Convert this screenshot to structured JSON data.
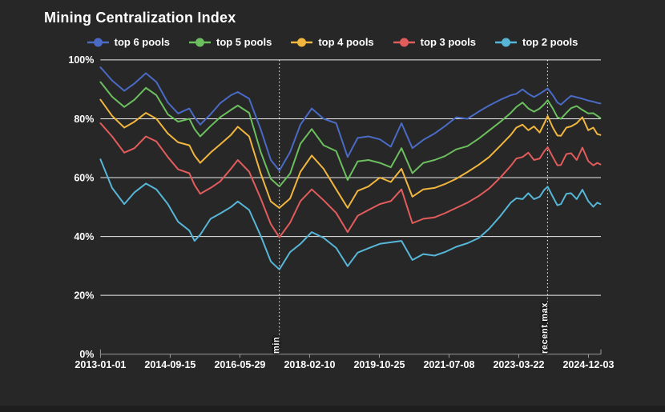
{
  "page": {
    "title": "Mining Centralization Index"
  },
  "theme": {
    "background": "#272727",
    "grid_color": "#ededed",
    "axis_color": "#9a9a9a",
    "text_color": "#ffffff",
    "annotation_line_color": "#ffffff"
  },
  "chart_data": {
    "type": "line",
    "title": "Mining Centralization Index",
    "xlabel": "",
    "ylabel": "",
    "ylim": [
      0,
      100
    ],
    "grid": true,
    "legend_position": "top",
    "x_range": [
      "2013-01-01",
      "2025-03-24"
    ],
    "y_tick_labels": [
      "0%",
      "20%",
      "40%",
      "60%",
      "80%",
      "100%"
    ],
    "x_tick_dates": [
      "2013-01-01",
      "2014-09-15",
      "2016-05-29",
      "2018-02-10",
      "2019-10-25",
      "2021-07-08",
      "2023-03-22",
      "2024-12-03"
    ],
    "annotations": [
      {
        "label": "min",
        "date": "2017-05-16"
      },
      {
        "label": "recent max",
        "date": "2023-12-04"
      }
    ],
    "dates": [
      "2013-01-01",
      "2013-04-15",
      "2013-08-01",
      "2013-11-01",
      "2014-02-10",
      "2014-05-15",
      "2014-08-25",
      "2014-11-25",
      "2015-03-05",
      "2015-04-20",
      "2015-06-10",
      "2015-09-10",
      "2015-12-05",
      "2016-03-10",
      "2016-05-10",
      "2016-08-20",
      "2016-12-01",
      "2017-03-01",
      "2017-05-16",
      "2017-08-20",
      "2017-11-20",
      "2018-03-01",
      "2018-06-15",
      "2018-10-05",
      "2019-01-15",
      "2019-04-15",
      "2019-07-20",
      "2019-10-30",
      "2020-02-05",
      "2020-05-10",
      "2020-08-15",
      "2020-11-20",
      "2021-03-01",
      "2021-06-01",
      "2021-09-10",
      "2021-12-20",
      "2022-04-01",
      "2022-07-01",
      "2022-10-10",
      "2023-01-10",
      "2023-03-01",
      "2023-04-25",
      "2023-06-15",
      "2023-08-05",
      "2023-09-25",
      "2023-11-05",
      "2023-12-05",
      "2024-01-20",
      "2024-03-01",
      "2024-04-01",
      "2024-05-20",
      "2024-07-01",
      "2024-08-20",
      "2024-10-10",
      "2024-12-01",
      "2025-01-15",
      "2025-02-20",
      "2025-03-20"
    ],
    "series": [
      {
        "name": "top 6 pools",
        "color": "#4a6bc5",
        "values": [
          97.5,
          93,
          89.5,
          92,
          95.5,
          92.5,
          85.5,
          81.8,
          83.5,
          80.5,
          78,
          81.5,
          85.3,
          88,
          89.1,
          86.8,
          76.4,
          66,
          62.4,
          68.7,
          78,
          83.5,
          80,
          78.5,
          67,
          73.5,
          74,
          73,
          70.5,
          78.5,
          70,
          72.8,
          75,
          77.5,
          80.5,
          80,
          82.5,
          84.5,
          86.5,
          88,
          88.5,
          90,
          88.5,
          87.4,
          88.5,
          89.5,
          90.3,
          88,
          85.5,
          84.8,
          86.5,
          87.8,
          87.3,
          86.8,
          86.2,
          85.8,
          85.4,
          85.2
        ]
      },
      {
        "name": "top 5 pools",
        "color": "#6cbf5e",
        "values": [
          92.5,
          87.5,
          84,
          86.5,
          90.5,
          88,
          81.5,
          79,
          80,
          76.5,
          74,
          77.5,
          80.5,
          83,
          84.5,
          82,
          68.7,
          59.6,
          57,
          61.4,
          71.5,
          76.5,
          71,
          69,
          59.2,
          65.5,
          66,
          65,
          63.5,
          70,
          61.5,
          65,
          66,
          67.3,
          69.6,
          70.7,
          73.3,
          76,
          79,
          82,
          84,
          85.5,
          83.5,
          82.4,
          83.5,
          85,
          86.3,
          83.5,
          80.5,
          80,
          82,
          83.6,
          84.3,
          83,
          81.8,
          81.9,
          81,
          80.2
        ]
      },
      {
        "name": "top 4 pools",
        "color": "#f1b63e",
        "values": [
          86.5,
          81,
          77,
          79,
          82,
          80,
          75,
          72,
          71,
          67.5,
          65,
          68.5,
          71.3,
          74.5,
          77.3,
          74,
          61.4,
          51.9,
          49.7,
          52.9,
          62,
          67.5,
          63,
          56,
          49.7,
          55.5,
          57,
          60,
          58.5,
          63,
          53.5,
          56,
          56.5,
          57.8,
          59.6,
          61.9,
          64.4,
          67,
          70.9,
          74.5,
          77,
          78,
          76.1,
          77.4,
          75.3,
          78.5,
          80.9,
          77,
          74.3,
          74.2,
          77,
          77.4,
          78.5,
          80.5,
          76.1,
          77,
          74.8,
          74.5
        ]
      },
      {
        "name": "top 3 pools",
        "color": "#e25c5c",
        "values": [
          78.5,
          74,
          68.5,
          70,
          74,
          72.3,
          67,
          62.8,
          61.5,
          57.5,
          54.5,
          56.5,
          58.7,
          63,
          66,
          62,
          52.9,
          44.2,
          39.7,
          44.7,
          52,
          56,
          52.3,
          48,
          41.5,
          47,
          49,
          51,
          52,
          56,
          44.5,
          46,
          46.5,
          47.9,
          49.7,
          51.5,
          53.8,
          56.3,
          60.1,
          64,
          66.5,
          67,
          68.5,
          66,
          66.5,
          69,
          70.3,
          67,
          64.2,
          64.3,
          68,
          68.3,
          66,
          70.2,
          65.6,
          64.2,
          65,
          64.5
        ]
      },
      {
        "name": "top 2 pools",
        "color": "#57b6d8",
        "values": [
          66.2,
          56.5,
          51,
          55,
          58,
          56,
          51,
          45,
          42,
          38.5,
          40.6,
          46,
          47.8,
          50,
          51.9,
          49,
          40.2,
          31.5,
          28.8,
          34.7,
          37.5,
          41.5,
          39.5,
          36.1,
          29.9,
          34.5,
          36,
          37.5,
          38,
          38.5,
          32,
          34,
          33.5,
          34.7,
          36.5,
          37.7,
          39.5,
          42.6,
          47,
          51.5,
          53,
          52.7,
          54.7,
          52.7,
          53.5,
          55.9,
          56.9,
          53.5,
          50.6,
          51,
          54.5,
          54.7,
          52.7,
          55.9,
          52,
          50.1,
          51.5,
          51
        ]
      }
    ]
  }
}
